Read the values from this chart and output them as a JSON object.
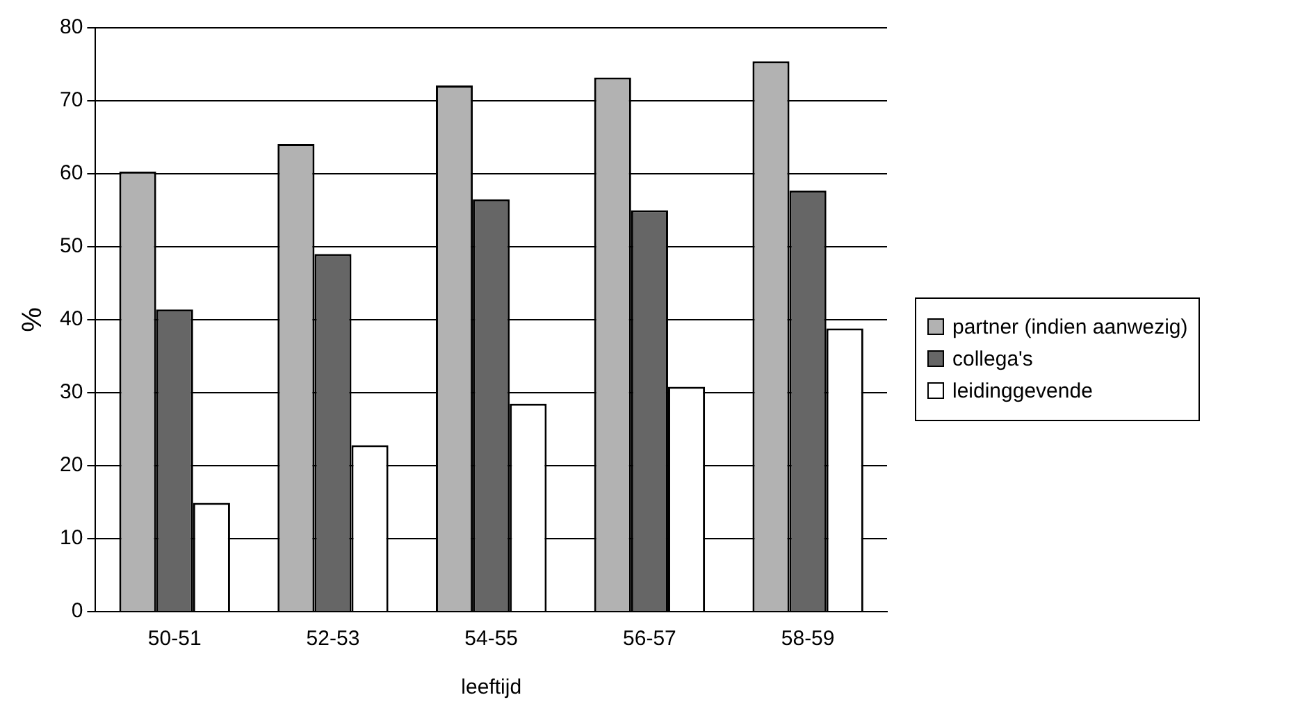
{
  "chart_data": {
    "type": "bar",
    "xlabel": "leeftijd",
    "ylabel": "%",
    "categories": [
      "50-51",
      "52-53",
      "54-55",
      "56-57",
      "58-59"
    ],
    "series": [
      {
        "name": "partner (indien aanwezig)",
        "color": "#b2b2b2",
        "values": [
          60.3,
          64.1,
          72.1,
          73.2,
          75.4
        ]
      },
      {
        "name": "collega's",
        "color": "#666666",
        "values": [
          41.4,
          49.0,
          56.5,
          55.0,
          57.7
        ]
      },
      {
        "name": "leidinggevende",
        "color": "#ffffff",
        "values": [
          14.9,
          22.8,
          28.5,
          30.8,
          38.8
        ]
      }
    ],
    "ylim": [
      0,
      80
    ],
    "yticks": [
      0,
      10,
      20,
      30,
      40,
      50,
      60,
      70,
      80
    ],
    "grid": "y",
    "legend": "right"
  }
}
